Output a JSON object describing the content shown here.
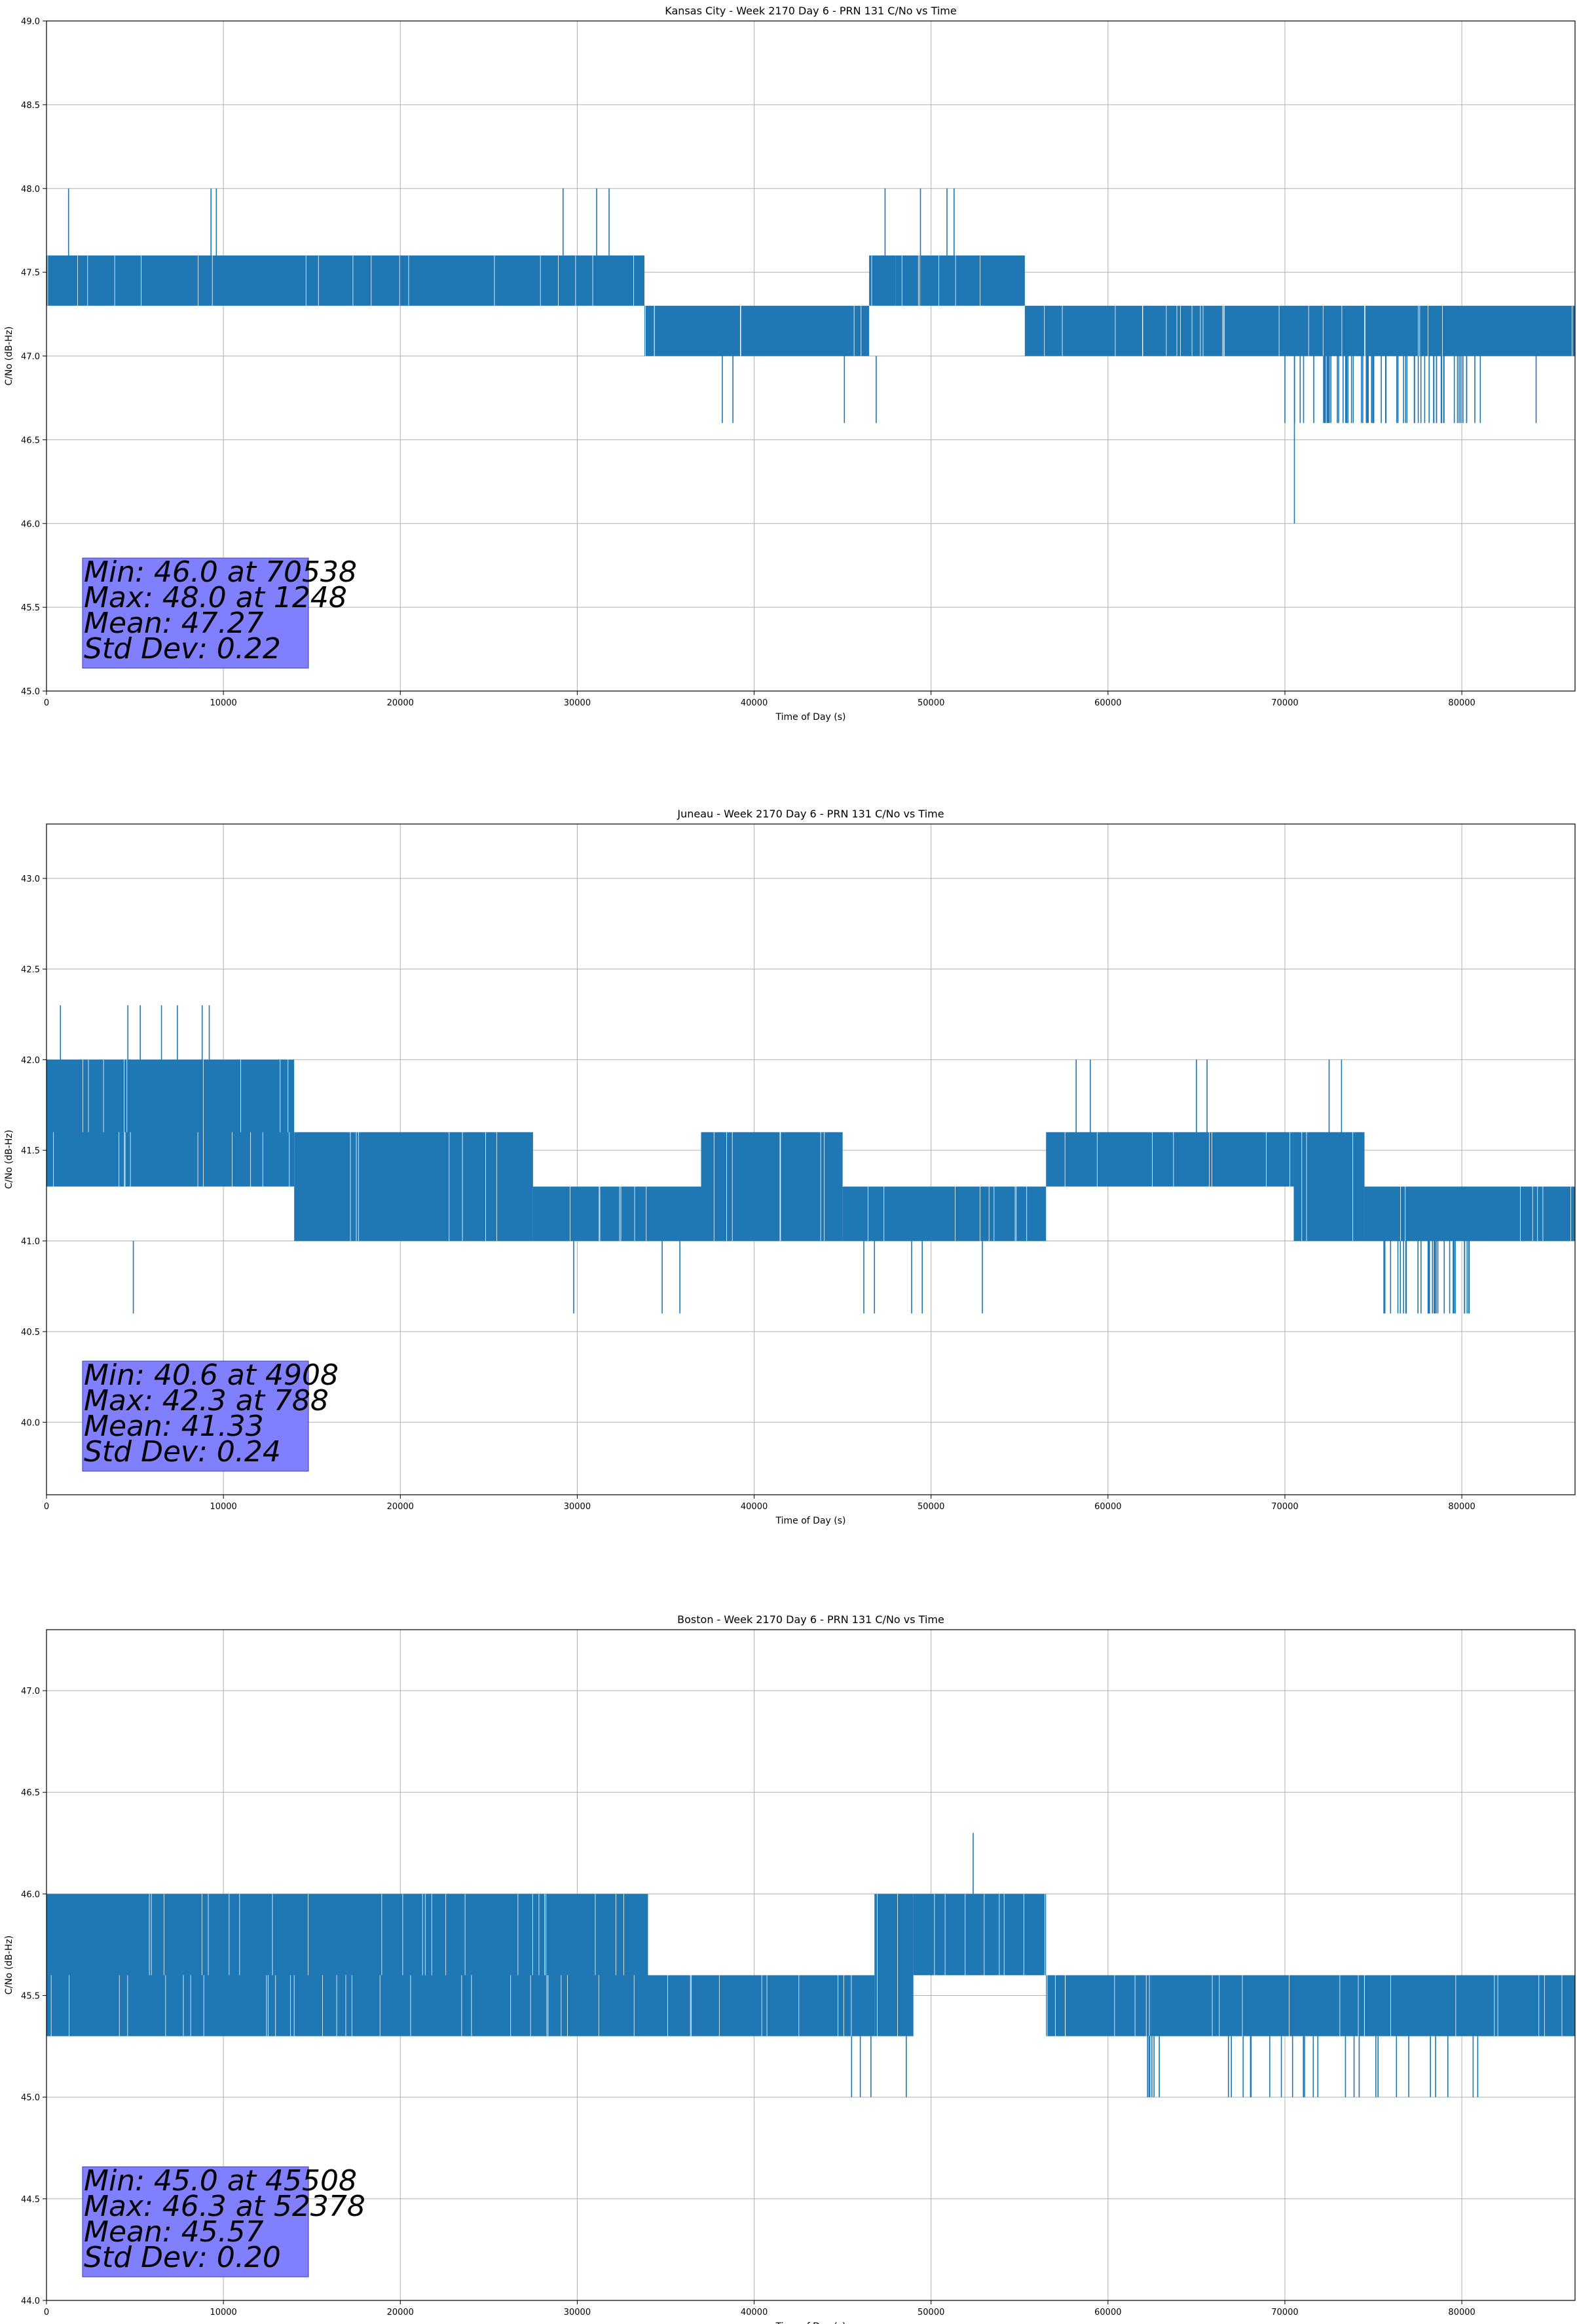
{
  "chart_data": [
    {
      "type": "line",
      "title": "Kansas City - Week 2170 Day 6 - PRN 131 C/No vs Time",
      "xlabel": "Time of Day (s)",
      "ylabel": "C/No (dB-Hz)",
      "xlim": [
        0,
        86400
      ],
      "ylim": [
        45.0,
        49.0
      ],
      "xticks": [
        0,
        10000,
        20000,
        30000,
        40000,
        50000,
        60000,
        70000,
        80000
      ],
      "yticks": [
        45.0,
        45.5,
        46.0,
        46.5,
        47.0,
        47.5,
        48.0,
        48.5,
        49.0
      ],
      "grid": true,
      "series_color": "#1f77b4",
      "series": [
        {
          "name": "C/No",
          "band_segments": [
            {
              "x_start": 0,
              "x_end": 33800,
              "low": 47.3,
              "high": 47.6
            },
            {
              "x_start": 33800,
              "x_end": 46500,
              "low": 47.0,
              "high": 47.3
            },
            {
              "x_start": 46500,
              "x_end": 48000,
              "low": 47.3,
              "high": 47.6
            },
            {
              "x_start": 48000,
              "x_end": 55300,
              "low": 47.3,
              "high": 47.6
            },
            {
              "x_start": 55300,
              "x_end": 86400,
              "low": 47.0,
              "high": 47.3
            }
          ],
          "excursions": [
            {
              "x": 1248,
              "low": 47.6,
              "high": 48.0
            },
            {
              "x": 9300,
              "low": 47.6,
              "high": 48.0
            },
            {
              "x": 9600,
              "low": 47.6,
              "high": 48.0
            },
            {
              "x": 29200,
              "low": 47.6,
              "high": 48.0
            },
            {
              "x": 31100,
              "low": 47.6,
              "high": 48.0
            },
            {
              "x": 31800,
              "low": 47.6,
              "high": 48.0
            },
            {
              "x": 47400,
              "low": 47.6,
              "high": 48.0
            },
            {
              "x": 49400,
              "low": 47.6,
              "high": 48.0
            },
            {
              "x": 50900,
              "low": 47.6,
              "high": 48.0
            },
            {
              "x": 51300,
              "low": 47.6,
              "high": 48.0
            },
            {
              "x": 38200,
              "low": 46.6,
              "high": 47.0
            },
            {
              "x": 38800,
              "low": 46.6,
              "high": 47.0
            },
            {
              "x": 45100,
              "low": 46.6,
              "high": 47.0
            },
            {
              "x": 46900,
              "low": 46.6,
              "high": 47.0
            },
            {
              "x": 70000,
              "low": 46.6,
              "high": 47.0
            },
            {
              "x": 70538,
              "low": 46.0,
              "high": 47.0
            },
            {
              "x": 84200,
              "low": 46.6,
              "high": 47.0
            }
          ],
          "sparse_ranges": [
            {
              "x_start": 70500,
              "x_end": 81200,
              "low": 46.6,
              "high": 47.0,
              "count": 60
            }
          ]
        }
      ],
      "stats": {
        "min_line": "Min: 46.0 at 70538",
        "max_line": "Max: 48.0 at 1248",
        "mean_line": "Mean: 47.27",
        "std_line": "Std Dev: 0.22",
        "box_color": "#8080ff"
      }
    },
    {
      "type": "line",
      "title": "Juneau - Week 2170 Day 6 - PRN 131 C/No vs Time",
      "xlabel": "Time of Day (s)",
      "ylabel": "C/No (dB-Hz)",
      "xlim": [
        0,
        86400
      ],
      "ylim": [
        39.6,
        43.3
      ],
      "xticks": [
        0,
        10000,
        20000,
        30000,
        40000,
        50000,
        60000,
        70000,
        80000
      ],
      "yticks": [
        40.0,
        40.5,
        41.0,
        41.5,
        42.0,
        42.5,
        43.0
      ],
      "grid": true,
      "series_color": "#1f77b4",
      "series": [
        {
          "name": "C/No",
          "band_segments": [
            {
              "x_start": 0,
              "x_end": 14000,
              "low": 41.6,
              "high": 42.0
            },
            {
              "x_start": 0,
              "x_end": 14000,
              "low": 41.3,
              "high": 41.6
            },
            {
              "x_start": 14000,
              "x_end": 27500,
              "low": 41.0,
              "high": 41.6
            },
            {
              "x_start": 27500,
              "x_end": 37000,
              "low": 41.0,
              "high": 41.3
            },
            {
              "x_start": 37000,
              "x_end": 45000,
              "low": 41.0,
              "high": 41.6
            },
            {
              "x_start": 45000,
              "x_end": 56500,
              "low": 41.0,
              "high": 41.3
            },
            {
              "x_start": 56500,
              "x_end": 70500,
              "low": 41.3,
              "high": 41.6
            },
            {
              "x_start": 70500,
              "x_end": 74500,
              "low": 41.0,
              "high": 41.6
            },
            {
              "x_start": 74500,
              "x_end": 86400,
              "low": 41.0,
              "high": 41.3
            }
          ],
          "excursions": [
            {
              "x": 788,
              "low": 42.0,
              "high": 42.3
            },
            {
              "x": 4908,
              "low": 40.6,
              "high": 41.0
            },
            {
              "x": 4600,
              "low": 42.0,
              "high": 42.3
            },
            {
              "x": 5300,
              "low": 42.0,
              "high": 42.3
            },
            {
              "x": 6500,
              "low": 42.0,
              "high": 42.3
            },
            {
              "x": 7400,
              "low": 42.0,
              "high": 42.3
            },
            {
              "x": 8800,
              "low": 42.0,
              "high": 42.3
            },
            {
              "x": 9200,
              "low": 42.0,
              "high": 42.3
            },
            {
              "x": 29800,
              "low": 40.6,
              "high": 41.0
            },
            {
              "x": 34800,
              "low": 40.6,
              "high": 41.0
            },
            {
              "x": 35800,
              "low": 40.6,
              "high": 41.0
            },
            {
              "x": 46200,
              "low": 40.6,
              "high": 41.0
            },
            {
              "x": 46800,
              "low": 40.6,
              "high": 41.0
            },
            {
              "x": 48900,
              "low": 40.6,
              "high": 41.0
            },
            {
              "x": 49500,
              "low": 40.6,
              "high": 41.0
            },
            {
              "x": 52900,
              "low": 40.6,
              "high": 41.0
            },
            {
              "x": 58200,
              "low": 41.6,
              "high": 42.0
            },
            {
              "x": 59000,
              "low": 41.6,
              "high": 42.0
            },
            {
              "x": 65000,
              "low": 41.6,
              "high": 42.0
            },
            {
              "x": 65600,
              "low": 41.6,
              "high": 42.0
            },
            {
              "x": 72500,
              "low": 41.6,
              "high": 42.0
            },
            {
              "x": 73200,
              "low": 41.6,
              "high": 42.0
            }
          ],
          "sparse_ranges": [
            {
              "x_start": 75500,
              "x_end": 80500,
              "low": 40.6,
              "high": 41.0,
              "count": 30
            }
          ]
        }
      ],
      "stats": {
        "min_line": "Min: 40.6 at 4908",
        "max_line": "Max: 42.3 at 788",
        "mean_line": "Mean: 41.33",
        "std_line": "Std Dev: 0.24",
        "box_color": "#8080ff"
      }
    },
    {
      "type": "line",
      "title": "Boston - Week 2170 Day 6 - PRN 131 C/No vs Time",
      "xlabel": "Time of Day (s)",
      "ylabel": "C/No (dB-Hz)",
      "xlim": [
        0,
        86400
      ],
      "ylim": [
        44.0,
        47.3
      ],
      "xticks": [
        0,
        10000,
        20000,
        30000,
        40000,
        50000,
        60000,
        70000,
        80000
      ],
      "yticks": [
        44.0,
        44.5,
        45.0,
        45.5,
        46.0,
        46.5,
        47.0
      ],
      "grid": true,
      "series_color": "#1f77b4",
      "series": [
        {
          "name": "C/No",
          "band_segments": [
            {
              "x_start": 0,
              "x_end": 34000,
              "low": 45.6,
              "high": 46.0
            },
            {
              "x_start": 0,
              "x_end": 34000,
              "low": 45.3,
              "high": 45.6
            },
            {
              "x_start": 34000,
              "x_end": 46800,
              "low": 45.3,
              "high": 45.6
            },
            {
              "x_start": 46800,
              "x_end": 49000,
              "low": 45.3,
              "high": 46.0
            },
            {
              "x_start": 49000,
              "x_end": 56500,
              "low": 45.6,
              "high": 46.0
            },
            {
              "x_start": 56500,
              "x_end": 86400,
              "low": 45.3,
              "high": 45.6
            }
          ],
          "excursions": [
            {
              "x": 52378,
              "low": 46.0,
              "high": 46.3
            },
            {
              "x": 45508,
              "low": 45.0,
              "high": 45.3
            },
            {
              "x": 46000,
              "low": 45.0,
              "high": 45.3
            },
            {
              "x": 46600,
              "low": 45.0,
              "high": 45.3
            },
            {
              "x": 48600,
              "low": 45.0,
              "high": 45.3
            },
            {
              "x": 62900,
              "low": 45.0,
              "high": 45.3
            },
            {
              "x": 69800,
              "low": 45.0,
              "high": 45.3
            },
            {
              "x": 74200,
              "low": 45.0,
              "high": 45.3
            },
            {
              "x": 77000,
              "low": 45.0,
              "high": 45.3
            },
            {
              "x": 80900,
              "low": 45.0,
              "high": 45.3
            }
          ],
          "sparse_ranges": [
            {
              "x_start": 62000,
              "x_end": 81000,
              "low": 45.0,
              "high": 45.3,
              "count": 25
            }
          ]
        }
      ],
      "stats": {
        "min_line": "Min: 45.0 at 45508",
        "max_line": "Max: 46.3 at 52378",
        "mean_line": "Mean: 45.57",
        "std_line": "Std Dev: 0.20",
        "box_color": "#8080ff"
      }
    }
  ]
}
